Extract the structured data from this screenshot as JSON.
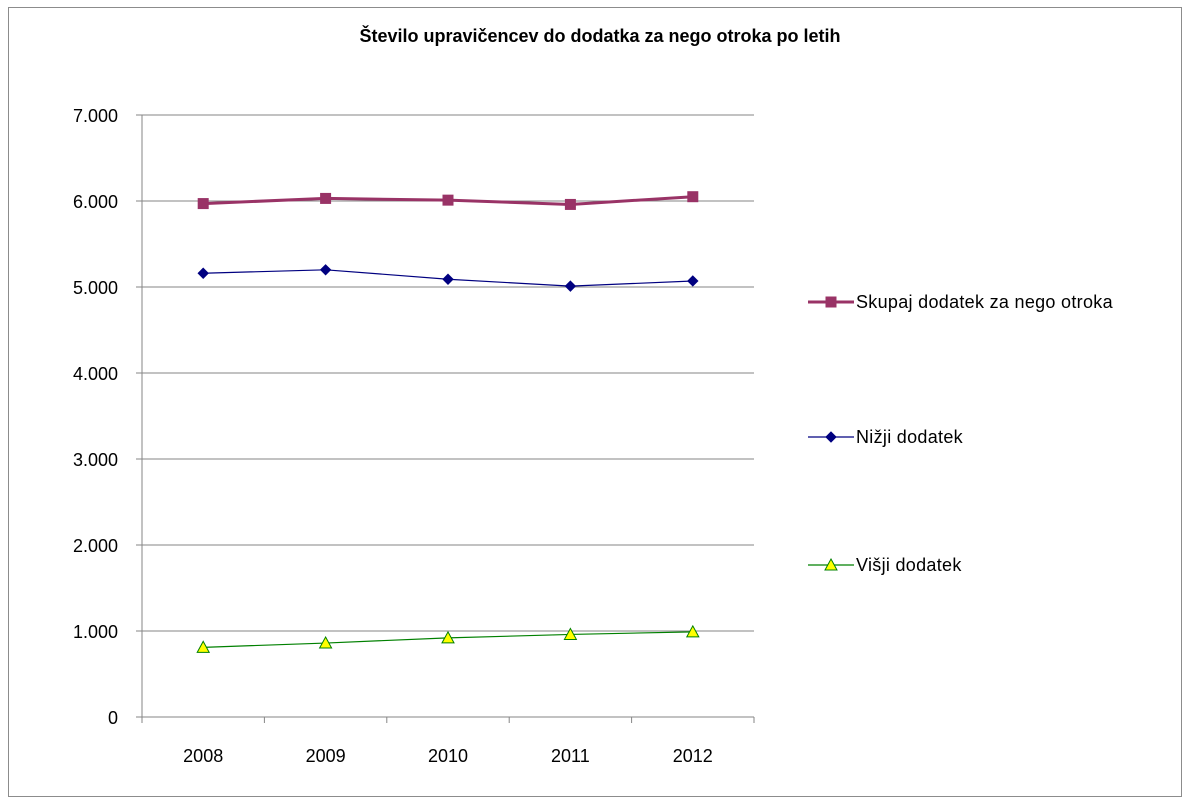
{
  "chart_data": {
    "type": "line",
    "title": "Število upravičencev do dodatka za nego otroka po letih",
    "categories": [
      "2008",
      "2009",
      "2010",
      "2011",
      "2012"
    ],
    "ylim": [
      0,
      7000
    ],
    "yticks": [
      0,
      1000,
      2000,
      3000,
      4000,
      5000,
      6000,
      7000
    ],
    "ytick_labels": [
      "0",
      "1.000",
      "2.000",
      "3.000",
      "4.000",
      "5.000",
      "6.000",
      "7.000"
    ],
    "grid": true,
    "legend_position": "right",
    "series": [
      {
        "name": "Skupaj dodatek za nego otroka",
        "values": [
          5970,
          6030,
          6010,
          5960,
          6050
        ],
        "color": "#993366",
        "marker": "square"
      },
      {
        "name": "Nižji dodatek",
        "values": [
          5160,
          5200,
          5090,
          5010,
          5070
        ],
        "color": "#000080",
        "marker": "diamond"
      },
      {
        "name": "Višji dodatek",
        "values": [
          810,
          860,
          920,
          960,
          990
        ],
        "color": "#008000",
        "marker": "triangle",
        "marker_fill": "#ffff00"
      }
    ]
  }
}
